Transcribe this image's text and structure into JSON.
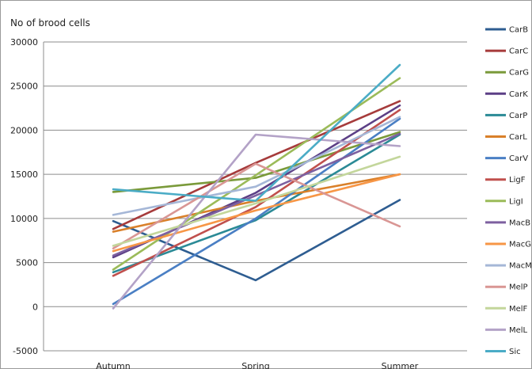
{
  "chart_data": {
    "type": "line",
    "title": "",
    "xlabel": "",
    "ylabel": "No of brood cells",
    "ylim": [
      -5000,
      30000
    ],
    "yticks": [
      -5000,
      0,
      5000,
      10000,
      15000,
      20000,
      25000,
      30000
    ],
    "grid": true,
    "legend_position": "right",
    "categories": [
      "Autumn",
      "Spring",
      "Summer"
    ],
    "series": [
      {
        "name": "CarB",
        "color": "#2e5d91",
        "values": [
          9700,
          3000,
          12100
        ]
      },
      {
        "name": "CarC",
        "color": "#a63b3b",
        "values": [
          8800,
          16300,
          23300
        ]
      },
      {
        "name": "CarG",
        "color": "#7a9a3a",
        "values": [
          13000,
          14600,
          19800
        ]
      },
      {
        "name": "CarK",
        "color": "#5c3f86",
        "values": [
          5600,
          12900,
          22800
        ]
      },
      {
        "name": "CarP",
        "color": "#2b8a96",
        "values": [
          3900,
          9800,
          19500
        ]
      },
      {
        "name": "CarL",
        "color": "#d9802a",
        "values": [
          8500,
          12000,
          15000
        ]
      },
      {
        "name": "CarV",
        "color": "#4a7fc4",
        "values": [
          300,
          10000,
          21300
        ]
      },
      {
        "name": "LigF",
        "color": "#c0504d",
        "values": [
          3500,
          11300,
          22300
        ]
      },
      {
        "name": "LigI",
        "color": "#9bbb59",
        "values": [
          4200,
          14900,
          25900
        ]
      },
      {
        "name": "MacB",
        "color": "#7d60a0",
        "values": [
          5800,
          12600,
          19600
        ]
      },
      {
        "name": "MacG",
        "color": "#f79646",
        "values": [
          6300,
          10900,
          15000
        ]
      },
      {
        "name": "MacM",
        "color": "#a5b7d7",
        "values": [
          10400,
          13600,
          21500
        ]
      },
      {
        "name": "MelP",
        "color": "#d99694",
        "values": [
          6600,
          16200,
          9100
        ]
      },
      {
        "name": "MelF",
        "color": "#c3d69b",
        "values": [
          6900,
          11700,
          17000
        ]
      },
      {
        "name": "MelL",
        "color": "#b3a2c7",
        "values": [
          -200,
          19500,
          18200
        ]
      },
      {
        "name": "Sic",
        "color": "#4bacc6",
        "values": [
          13300,
          12000,
          27400
        ]
      }
    ]
  }
}
